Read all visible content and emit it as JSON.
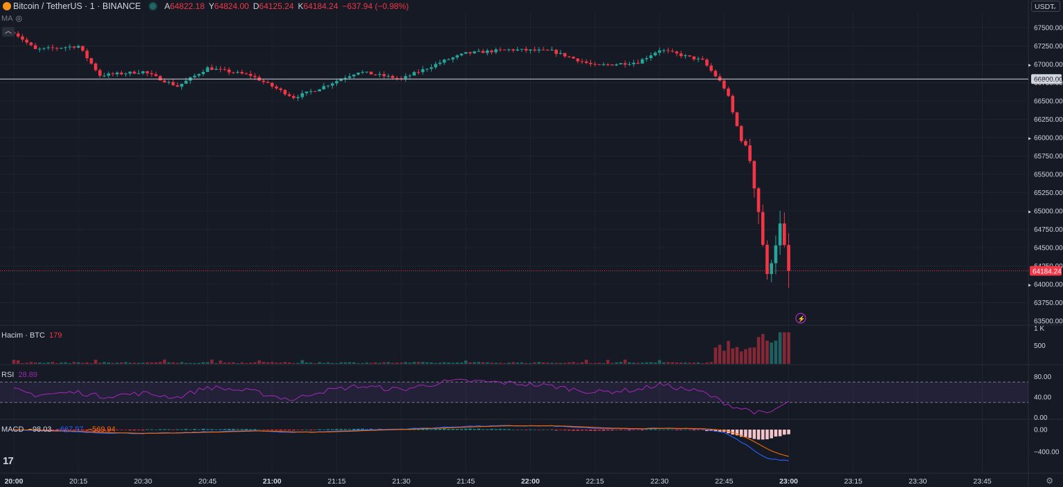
{
  "header": {
    "symbol": "Bitcoin / TetherUS · 1 · BINANCE",
    "ohlc": [
      {
        "label": "A",
        "value": "64822.18"
      },
      {
        "label": "Y",
        "value": "64824.00"
      },
      {
        "label": "D",
        "value": "64125.24"
      },
      {
        "label": "K",
        "value": "64184.24"
      }
    ],
    "change": "−637.94 (−0.98%)",
    "ma_label": "MA",
    "currency": "USDT",
    "collapse_icon": "chevron-up-icon"
  },
  "colors": {
    "up": "#26a69a",
    "down": "#f23645",
    "background": "#161a25",
    "grid": "#1f2330",
    "rsi": "#9c27b0",
    "macd": "#2962ff",
    "signal": "#ff6d00"
  },
  "panes": {
    "volume_label": "Hacim · BTC",
    "volume_value": "179",
    "rsi_label": "RSI",
    "rsi_value": "28.89",
    "macd_label": "MACD",
    "macd_values": [
      "−98.03",
      "−667.97",
      "−569.94"
    ]
  },
  "chart_data": {
    "type": "candlestick",
    "x_ticks": [
      "20:00",
      "20:15",
      "20:30",
      "20:45",
      "21:00",
      "21:15",
      "21:30",
      "21:45",
      "22:00",
      "22:15",
      "22:30",
      "22:45",
      "23:00",
      "23:15",
      "23:30",
      "23:45"
    ],
    "y_ticks": [
      "67500.00",
      "67250.00",
      "67000.00",
      "66750.00",
      "66500.00",
      "66250.00",
      "66000.00",
      "65750.00",
      "65500.00",
      "65250.00",
      "65000.00",
      "64750.00",
      "64500.00",
      "64250.00",
      "64000.00",
      "63750.00",
      "63500.00"
    ],
    "y_range": [
      63500,
      67500
    ],
    "reference_line": {
      "value": 66800,
      "label": "66800.00"
    },
    "last_price": {
      "value": 64184.24,
      "label": "64184.24"
    },
    "volume_ticks": [
      "1 K",
      "500"
    ],
    "rsi_ticks": [
      "80.00",
      "40.00",
      "0.00"
    ],
    "macd_ticks": [
      "0.00",
      "−400.00"
    ],
    "keypoints": [
      {
        "t": "20:00",
        "price": 67440,
        "rsi": 55,
        "macd": -10
      },
      {
        "t": "20:05",
        "price": 67200,
        "rsi": 45,
        "macd": -20
      },
      {
        "t": "20:15",
        "price": 67250,
        "rsi": 50,
        "macd": -40
      },
      {
        "t": "20:20",
        "price": 66850,
        "rsi": 42,
        "macd": -60
      },
      {
        "t": "20:30",
        "price": 66900,
        "rsi": 48,
        "macd": -70
      },
      {
        "t": "20:38",
        "price": 66700,
        "rsi": 40,
        "macd": -60
      },
      {
        "t": "20:45",
        "price": 66950,
        "rsi": 60,
        "macd": -40
      },
      {
        "t": "20:55",
        "price": 66850,
        "rsi": 52,
        "macd": -20
      },
      {
        "t": "21:05",
        "price": 66550,
        "rsi": 35,
        "macd": -50
      },
      {
        "t": "21:10",
        "price": 66650,
        "rsi": 50,
        "macd": -45
      },
      {
        "t": "21:20",
        "price": 66900,
        "rsi": 62,
        "macd": -10
      },
      {
        "t": "21:30",
        "price": 66800,
        "rsi": 55,
        "macd": 10
      },
      {
        "t": "21:40",
        "price": 67050,
        "rsi": 70,
        "macd": 40
      },
      {
        "t": "21:45",
        "price": 67150,
        "rsi": 72,
        "macd": 60
      },
      {
        "t": "21:55",
        "price": 67200,
        "rsi": 68,
        "macd": 70
      },
      {
        "t": "22:05",
        "price": 67180,
        "rsi": 62,
        "macd": 65
      },
      {
        "t": "22:15",
        "price": 66980,
        "rsi": 50,
        "macd": 20
      },
      {
        "t": "22:25",
        "price": 67030,
        "rsi": 55,
        "macd": 10
      },
      {
        "t": "22:30",
        "price": 67200,
        "rsi": 65,
        "macd": 30
      },
      {
        "t": "22:40",
        "price": 67050,
        "rsi": 50,
        "macd": 10
      },
      {
        "t": "22:45",
        "price": 66700,
        "rsi": 30,
        "macd": -50
      },
      {
        "t": "22:48",
        "price": 66150,
        "rsi": 20,
        "macd": -180
      },
      {
        "t": "22:51",
        "price": 65700,
        "rsi": 15,
        "macd": -320
      },
      {
        "t": "22:53",
        "price": 65000,
        "rsi": 10,
        "macd": -440
      },
      {
        "t": "22:55",
        "price": 64100,
        "rsi": 7,
        "macd": -520
      },
      {
        "t": "22:58",
        "price": 64800,
        "rsi": 22,
        "macd": -550
      },
      {
        "t": "23:00",
        "price": 64184.24,
        "rsi": 28.89,
        "macd": -560
      }
    ],
    "volume_series_hint": "low volume until ~22:45, spike during the drop (peak near 1K BTC)"
  },
  "icons": {
    "lightning": "lightning-icon",
    "settings": "gear-icon",
    "logo": "tradingview-logo"
  }
}
